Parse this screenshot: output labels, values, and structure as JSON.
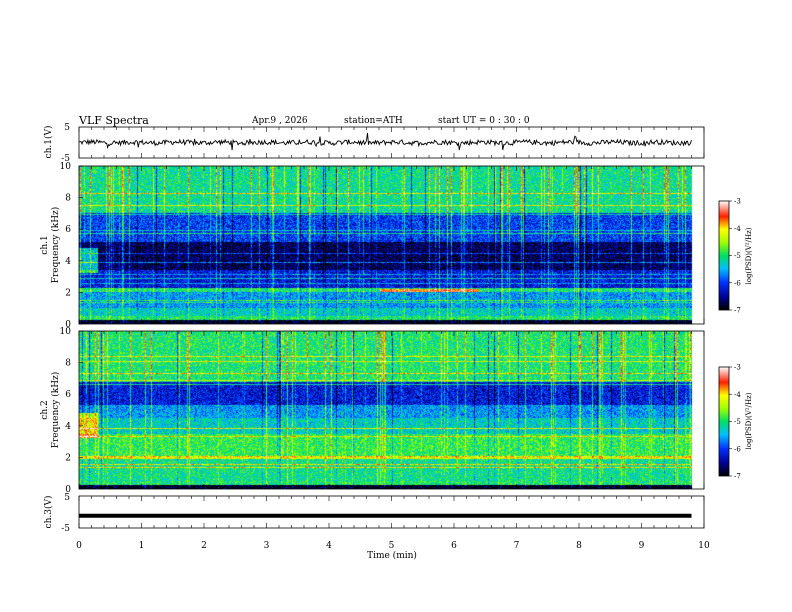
{
  "header": {
    "title": "VLF  Spectra",
    "date": "Apr.9  , 2026",
    "station": "station=ATH",
    "start_ut": "start  UT  =    0  : 30 : 0"
  },
  "chart_data": [
    {
      "type": "line",
      "name": "ch1-waveform",
      "ylabel": "ch.1(V)",
      "ylim": [
        -5,
        5
      ],
      "yticks": [
        "5",
        "-5"
      ],
      "xlim": [
        0,
        10
      ],
      "note": "noisy broadband waveform centered near 0 V, amplitude roughly ±1 V with occasional spikes, data ends ~9.8 min"
    },
    {
      "type": "heatmap",
      "name": "ch1-spectrogram",
      "ylabel": "ch.1\nFrequency (kHz)",
      "ylabel_lines": [
        "ch.1",
        "Frequency  (kHz)"
      ],
      "ylim": [
        0,
        10
      ],
      "yticks": [
        "0",
        "2",
        "4",
        "6",
        "8",
        "10"
      ],
      "xlim": [
        0,
        10
      ],
      "colorbar": {
        "label": "log(PSD)(V²/Hz)",
        "range": [
          -7,
          -3
        ],
        "ticks": [
          "-3",
          "-4",
          "-5",
          "-6",
          "-7"
        ]
      },
      "bands": [
        {
          "f": [
            0,
            0.5
          ],
          "level": -5.0
        },
        {
          "f": [
            0.5,
            1.0
          ],
          "level": -5.3
        },
        {
          "f": [
            1.0,
            2.0
          ],
          "level": -5.6
        },
        {
          "f": [
            2.0,
            2.3
          ],
          "level": -5.0
        },
        {
          "f": [
            2.3,
            3.4
          ],
          "level": -6.2
        },
        {
          "f": [
            3.4,
            5.2
          ],
          "level": -6.7
        },
        {
          "f": [
            5.2,
            7.0
          ],
          "level": -6.0
        },
        {
          "f": [
            7.0,
            10.0
          ],
          "level": -5.1
        }
      ]
    },
    {
      "type": "heatmap",
      "name": "ch2-spectrogram",
      "ylabel": "ch.2\nFrequency (kHz)",
      "ylabel_lines": [
        "ch.2",
        "Frequency  (kHz)"
      ],
      "ylim": [
        0,
        10
      ],
      "yticks": [
        "0",
        "2",
        "4",
        "6",
        "8",
        "10"
      ],
      "xlim": [
        0,
        10
      ],
      "colorbar": {
        "label": "log(PSD)(V²/Hz)",
        "range": [
          -7,
          -3
        ],
        "ticks": [
          "-3",
          "-4",
          "-5",
          "-6",
          "-7"
        ]
      },
      "bands": [
        {
          "f": [
            0,
            0.5
          ],
          "level": -5.0
        },
        {
          "f": [
            0.5,
            2.0
          ],
          "level": -5.1
        },
        {
          "f": [
            2.0,
            3.5
          ],
          "level": -4.9
        },
        {
          "f": [
            3.5,
            4.5
          ],
          "level": -5.3
        },
        {
          "f": [
            4.5,
            5.3
          ],
          "level": -5.6
        },
        {
          "f": [
            5.3,
            6.8
          ],
          "level": -6.2
        },
        {
          "f": [
            6.8,
            10.0
          ],
          "level": -5.0
        }
      ]
    },
    {
      "type": "line",
      "name": "ch3-waveform",
      "ylabel": "ch.3(V)",
      "ylim": [
        -5,
        5
      ],
      "yticks": [
        "5",
        "-5"
      ],
      "xlim": [
        0,
        10
      ],
      "value_approx": -1.2,
      "note": "flat, thick trace slightly below 0 V"
    }
  ],
  "xaxis": {
    "label": "Time  (min)",
    "ticks": [
      "0",
      "1",
      "2",
      "3",
      "4",
      "5",
      "6",
      "7",
      "8",
      "9",
      "10"
    ],
    "range": [
      0,
      10
    ],
    "data_end": 9.8
  }
}
